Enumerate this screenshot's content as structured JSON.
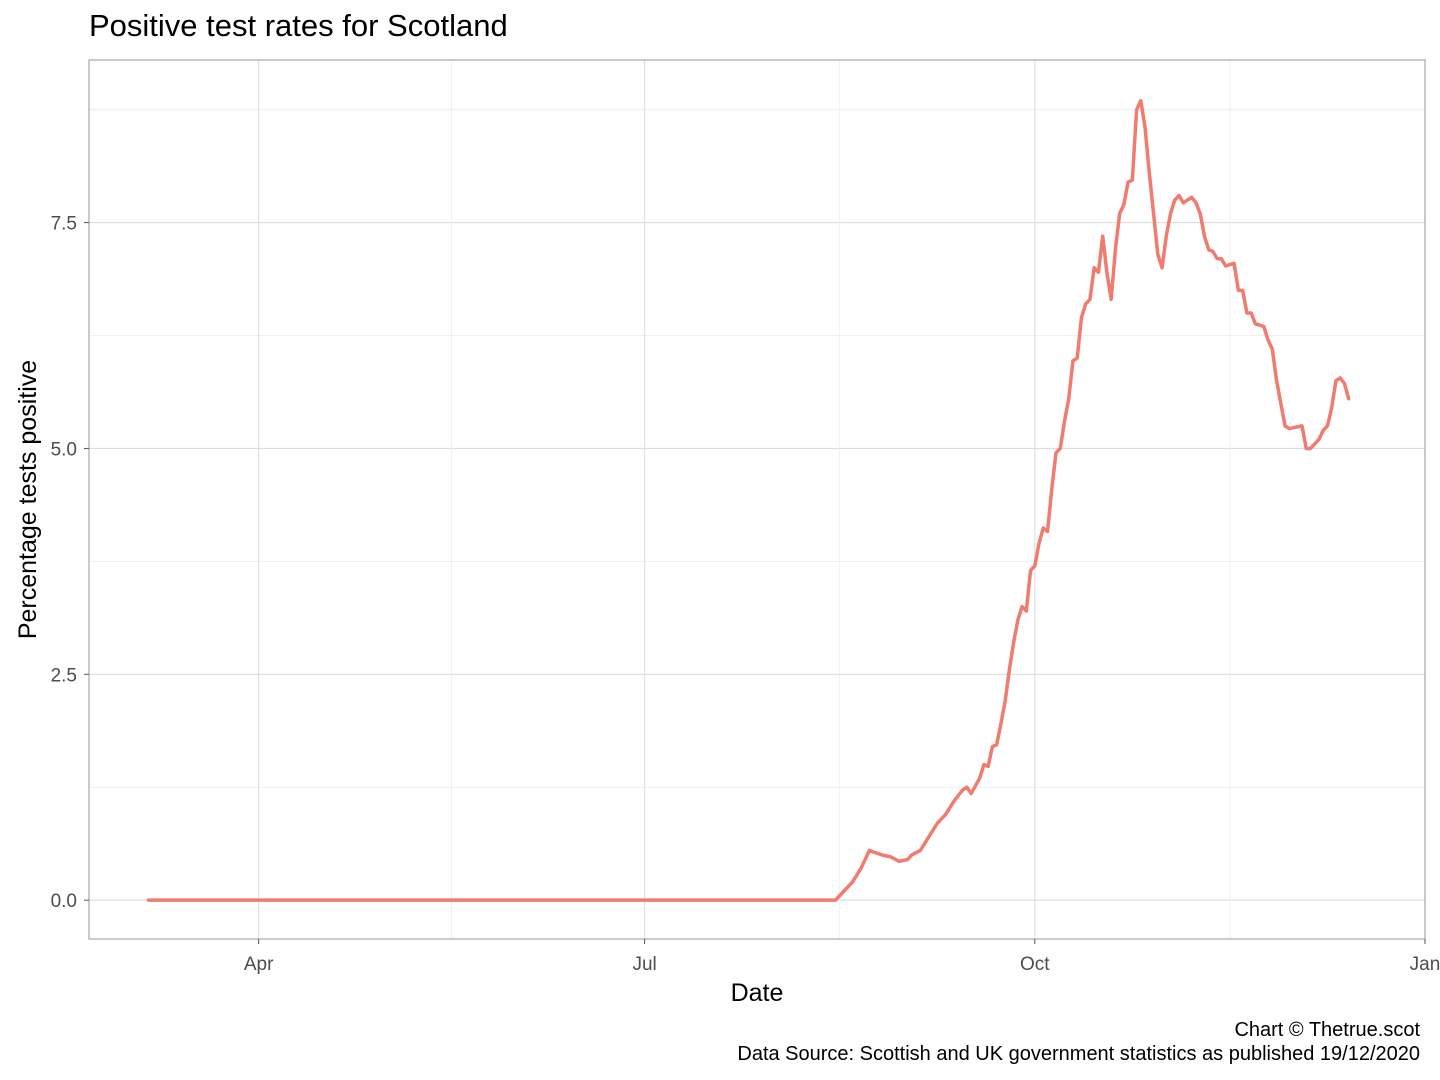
{
  "chart_data": {
    "type": "line",
    "title": "Positive test rates for Scotland",
    "xlabel": "Date",
    "ylabel": "Percentage tests positive",
    "x_ticks": [
      "Apr",
      "Jul",
      "Oct",
      "Jan"
    ],
    "x_tick_dates": [
      "2020-04-01",
      "2020-07-01",
      "2020-10-01",
      "2021-01-01"
    ],
    "y_ticks": [
      "0.0",
      "2.5",
      "5.0",
      "7.5"
    ],
    "y_tick_values": [
      0,
      2.5,
      5.0,
      7.5
    ],
    "xlim": [
      "2020-02-21",
      "2021-01-01"
    ],
    "ylim": [
      -0.43,
      9.3
    ],
    "grid": true,
    "line_color": "#F07B6F",
    "series": [
      {
        "points": [
          [
            "2020-03-06",
            0.0
          ],
          [
            "2020-04-15",
            0.0
          ],
          [
            "2020-06-01",
            0.0
          ],
          [
            "2020-07-15",
            0.0
          ],
          [
            "2020-08-15",
            0.0
          ],
          [
            "2020-08-17",
            0.1
          ],
          [
            "2020-08-19",
            0.2
          ],
          [
            "2020-08-21",
            0.35
          ],
          [
            "2020-08-23",
            0.55
          ],
          [
            "2020-08-26",
            0.5
          ],
          [
            "2020-08-28",
            0.48
          ],
          [
            "2020-08-30",
            0.43
          ],
          [
            "2020-09-01",
            0.45
          ],
          [
            "2020-09-02",
            0.5
          ],
          [
            "2020-09-04",
            0.55
          ],
          [
            "2020-09-06",
            0.7
          ],
          [
            "2020-09-08",
            0.85
          ],
          [
            "2020-09-10",
            0.95
          ],
          [
            "2020-09-12",
            1.1
          ],
          [
            "2020-09-14",
            1.22
          ],
          [
            "2020-09-15",
            1.25
          ],
          [
            "2020-09-16",
            1.18
          ],
          [
            "2020-09-18",
            1.35
          ],
          [
            "2020-09-19",
            1.5
          ],
          [
            "2020-09-20",
            1.48
          ],
          [
            "2020-09-21",
            1.7
          ],
          [
            "2020-09-22",
            1.72
          ],
          [
            "2020-09-23",
            1.95
          ],
          [
            "2020-09-24",
            2.2
          ],
          [
            "2020-09-25",
            2.55
          ],
          [
            "2020-09-26",
            2.85
          ],
          [
            "2020-09-27",
            3.1
          ],
          [
            "2020-09-28",
            3.25
          ],
          [
            "2020-09-29",
            3.2
          ],
          [
            "2020-09-30",
            3.65
          ],
          [
            "2020-10-01",
            3.7
          ],
          [
            "2020-10-02",
            3.95
          ],
          [
            "2020-10-03",
            4.12
          ],
          [
            "2020-10-04",
            4.08
          ],
          [
            "2020-10-05",
            4.55
          ],
          [
            "2020-10-06",
            4.95
          ],
          [
            "2020-10-07",
            5.0
          ],
          [
            "2020-10-08",
            5.3
          ],
          [
            "2020-10-09",
            5.55
          ],
          [
            "2020-10-10",
            5.97
          ],
          [
            "2020-10-11",
            6.0
          ],
          [
            "2020-10-12",
            6.45
          ],
          [
            "2020-10-13",
            6.6
          ],
          [
            "2020-10-14",
            6.65
          ],
          [
            "2020-10-15",
            7.0
          ],
          [
            "2020-10-16",
            6.95
          ],
          [
            "2020-10-17",
            7.35
          ],
          [
            "2020-10-18",
            6.95
          ],
          [
            "2020-10-19",
            6.65
          ],
          [
            "2020-10-20",
            7.2
          ],
          [
            "2020-10-21",
            7.6
          ],
          [
            "2020-10-22",
            7.7
          ],
          [
            "2020-10-23",
            7.95
          ],
          [
            "2020-10-24",
            7.97
          ],
          [
            "2020-10-25",
            8.75
          ],
          [
            "2020-10-26",
            8.85
          ],
          [
            "2020-10-27",
            8.55
          ],
          [
            "2020-10-28",
            8.05
          ],
          [
            "2020-10-29",
            7.6
          ],
          [
            "2020-10-30",
            7.15
          ],
          [
            "2020-10-31",
            7.0
          ],
          [
            "2020-11-01",
            7.35
          ],
          [
            "2020-11-02",
            7.6
          ],
          [
            "2020-11-03",
            7.75
          ],
          [
            "2020-11-04",
            7.8
          ],
          [
            "2020-11-05",
            7.72
          ],
          [
            "2020-11-07",
            7.78
          ],
          [
            "2020-11-08",
            7.72
          ],
          [
            "2020-11-09",
            7.6
          ],
          [
            "2020-11-10",
            7.35
          ],
          [
            "2020-11-11",
            7.2
          ],
          [
            "2020-11-12",
            7.18
          ],
          [
            "2020-11-13",
            7.1
          ],
          [
            "2020-11-14",
            7.1
          ],
          [
            "2020-11-15",
            7.02
          ],
          [
            "2020-11-17",
            7.05
          ],
          [
            "2020-11-18",
            6.75
          ],
          [
            "2020-11-19",
            6.75
          ],
          [
            "2020-11-20",
            6.5
          ],
          [
            "2020-11-21",
            6.5
          ],
          [
            "2020-11-22",
            6.38
          ],
          [
            "2020-11-24",
            6.35
          ],
          [
            "2020-11-25",
            6.2
          ],
          [
            "2020-11-26",
            6.1
          ],
          [
            "2020-11-27",
            5.75
          ],
          [
            "2020-11-28",
            5.5
          ],
          [
            "2020-11-29",
            5.25
          ],
          [
            "2020-11-30",
            5.22
          ],
          [
            "2020-12-01",
            5.23
          ],
          [
            "2020-12-03",
            5.25
          ],
          [
            "2020-12-04",
            5.0
          ],
          [
            "2020-12-05",
            5.0
          ],
          [
            "2020-12-06",
            5.05
          ],
          [
            "2020-12-07",
            5.1
          ],
          [
            "2020-12-08",
            5.2
          ],
          [
            "2020-12-09",
            5.25
          ],
          [
            "2020-12-10",
            5.45
          ],
          [
            "2020-12-11",
            5.75
          ],
          [
            "2020-12-12",
            5.78
          ],
          [
            "2020-12-13",
            5.72
          ],
          [
            "2020-12-14",
            5.55
          ]
        ]
      }
    ]
  },
  "caption": {
    "credit": "Chart © Thetrue.scot",
    "source": "Data Source: Scottish and UK government statistics as published 19/12/2020"
  }
}
